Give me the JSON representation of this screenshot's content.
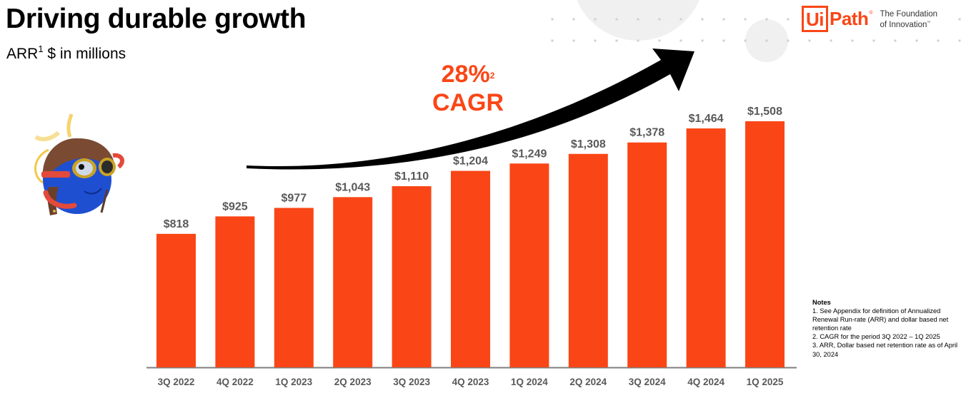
{
  "header": {
    "title": "Driving durable growth",
    "subtitle_prefix": "ARR",
    "subtitle_sup": "1",
    "subtitle_suffix": " $ in millions"
  },
  "logo": {
    "mark": "Ui",
    "word": "Path",
    "registered": "®",
    "tagline_line1": "The Foundation",
    "tagline_line2": "of Innovation",
    "trademark": "™"
  },
  "callout": {
    "value": "28%",
    "footnote": "2",
    "label": "CAGR",
    "icon": "curved-arrow-up-right-icon"
  },
  "colors": {
    "bar": "#fa4616",
    "accent": "#fa4616",
    "label_text": "#595959",
    "axis": "#7f7f7f",
    "deco_circle": "#f0f0f0",
    "deco_dot": "#d0d0d0"
  },
  "mascot": {
    "icon": "aviator-mascot-icon"
  },
  "notes": {
    "title": "Notes",
    "items": [
      "1. See Appendix for definition of Annualized Renewal Run-rate (ARR) and dollar based net retention rate",
      "2. CAGR for the period 3Q 2022 – 1Q 2025",
      "3. ARR, Dollar based net retention rate as of April 30, 2024"
    ]
  },
  "chart_data": {
    "type": "bar",
    "title": "Driving durable growth",
    "subtitle": "ARR $ in millions",
    "xlabel": "",
    "ylabel": "ARR ($M)",
    "categories": [
      "3Q 2022",
      "4Q 2022",
      "1Q 2023",
      "2Q 2023",
      "3Q 2023",
      "4Q 2023",
      "1Q 2024",
      "2Q 2024",
      "3Q 2024",
      "4Q 2024",
      "1Q 2025"
    ],
    "values": [
      818,
      925,
      977,
      1043,
      1110,
      1204,
      1249,
      1308,
      1378,
      1464,
      1508
    ],
    "data_labels": [
      "$818",
      "$925",
      "$977",
      "$1,043",
      "$1,110",
      "$1,204",
      "$1,249",
      "$1,308",
      "$1,378",
      "$1,464",
      "$1,508"
    ],
    "ylim": [
      0,
      1508
    ],
    "grid": false,
    "legend": "none",
    "annotations": [
      "28% CAGR"
    ]
  }
}
